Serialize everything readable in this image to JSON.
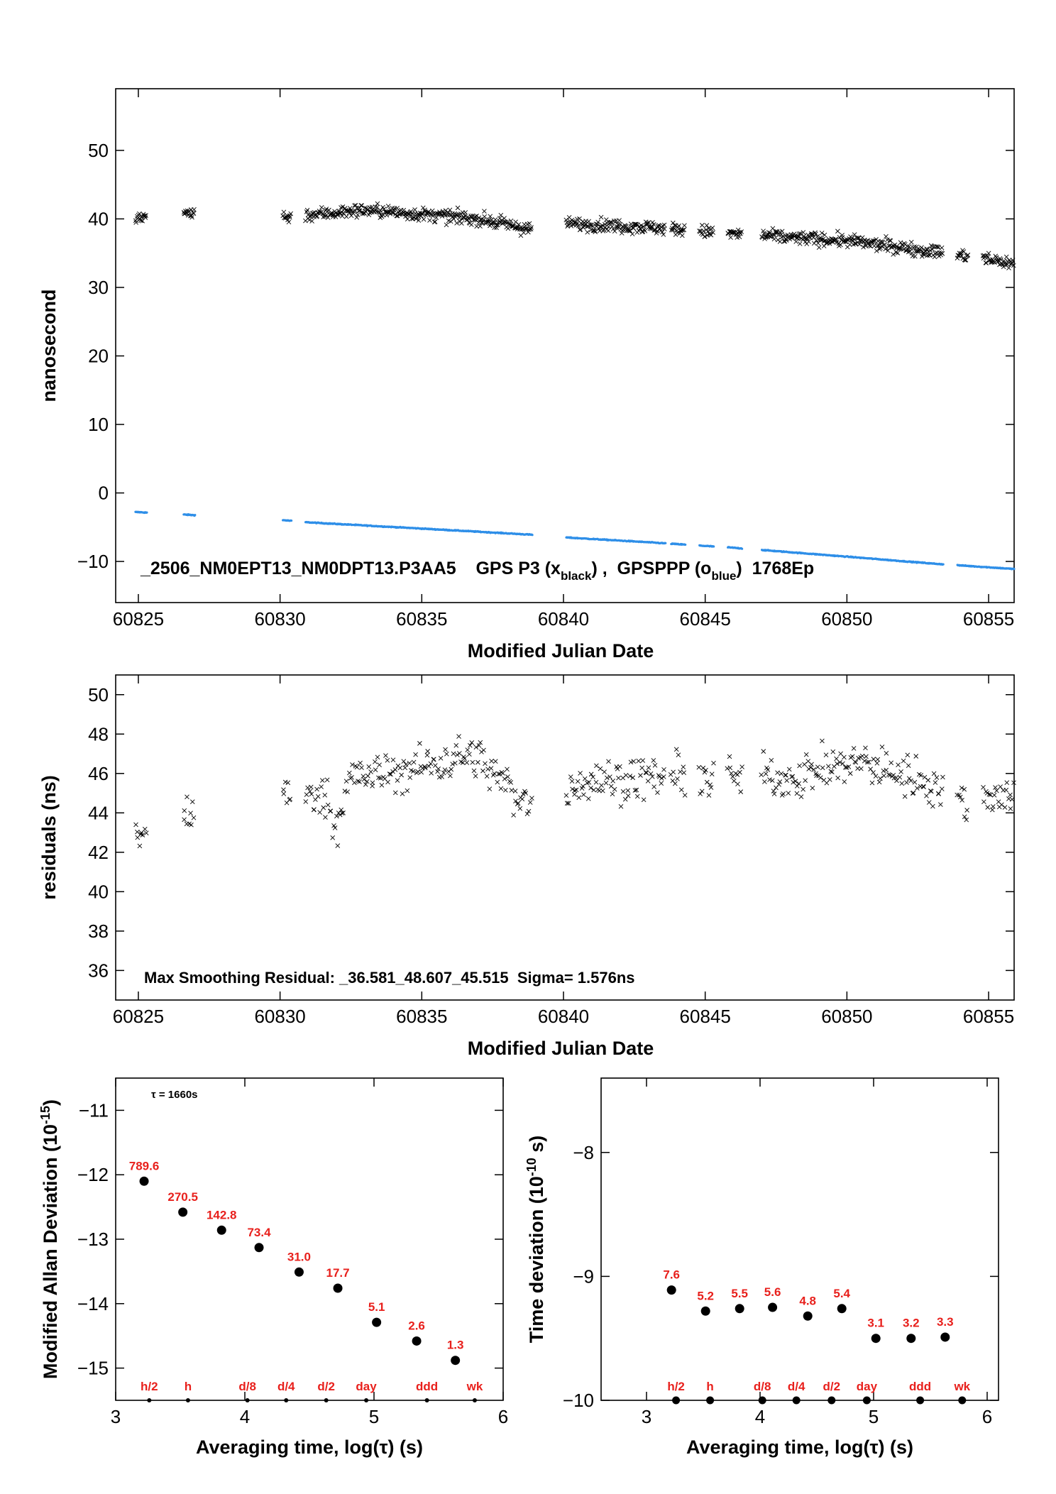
{
  "chart_data": [
    {
      "id": "time_series",
      "type": "scatter",
      "xlabel": "Modified Julian Date",
      "ylabel": "nanosecond",
      "xlim": [
        60824.2,
        60855.9
      ],
      "ylim": [
        -16,
        59
      ],
      "xticks": [
        60825,
        60830,
        60835,
        60840,
        60845,
        60850,
        60855
      ],
      "yticks": [
        -10,
        0,
        10,
        20,
        30,
        40,
        50
      ],
      "annotation": {
        "prefix": "_2506_NM0EPT13_NM0DPT13.P3AA5    GPS P3 (x",
        "sub1": "black",
        "mid": ") ,  GPSPPP (o",
        "sub2": "blue",
        "suffix": ")  1768Ep"
      },
      "colors": {
        "black_series": "#000000",
        "blue_series": "#2f8fe8"
      },
      "series": [
        {
          "marker": "x",
          "color": "#000000",
          "segments": [
            [
              60824.9,
              60825.3
            ],
            [
              60826.6,
              60827.0
            ],
            [
              60830.1,
              60830.4
            ],
            [
              60830.9,
              60838.9
            ],
            [
              60840.1,
              60843.6
            ],
            [
              60843.8,
              60844.3
            ],
            [
              60844.8,
              60845.3
            ],
            [
              60845.8,
              60846.3
            ],
            [
              60847.0,
              60853.4
            ],
            [
              60853.9,
              60854.3
            ],
            [
              60854.8,
              60855.9
            ]
          ],
          "trend": [
            [
              60825,
              40
            ],
            [
              60826.8,
              41
            ],
            [
              60830.2,
              40.3
            ],
            [
              60833,
              41.3
            ],
            [
              60837,
              40
            ],
            [
              60838.8,
              38.5
            ],
            [
              60840.3,
              39.3
            ],
            [
              60843,
              38.8
            ],
            [
              60846,
              37.8
            ],
            [
              60850,
              36.8
            ],
            [
              60853,
              35.3
            ],
            [
              60855.9,
              33.5
            ]
          ]
        },
        {
          "marker": "o",
          "color": "#2f8fe8",
          "segments": [
            [
              60824.9,
              60825.3
            ],
            [
              60826.6,
              60827.0
            ],
            [
              60830.1,
              60830.4
            ],
            [
              60830.9,
              60838.9
            ],
            [
              60840.1,
              60843.6
            ],
            [
              60843.8,
              60844.3
            ],
            [
              60844.8,
              60845.3
            ],
            [
              60845.8,
              60846.3
            ],
            [
              60847.0,
              60853.4
            ],
            [
              60853.9,
              60855.9
            ]
          ],
          "trend": [
            [
              60825,
              -2.8
            ],
            [
              60826.8,
              -3.2
            ],
            [
              60830.2,
              -4
            ],
            [
              60831,
              -4.3
            ],
            [
              60835,
              -5.2
            ],
            [
              60838.9,
              -6.1
            ],
            [
              60840.1,
              -6.5
            ],
            [
              60843,
              -7.2
            ],
            [
              60846,
              -8
            ],
            [
              60850,
              -9.3
            ],
            [
              60853,
              -10.3
            ],
            [
              60855.9,
              -11.1
            ]
          ]
        }
      ]
    },
    {
      "id": "residuals",
      "type": "scatter",
      "xlabel": "Modified Julian Date",
      "ylabel": "residuals (ns)",
      "xlim": [
        60824.2,
        60855.9
      ],
      "ylim": [
        34.5,
        51
      ],
      "xticks": [
        60825,
        60830,
        60835,
        60840,
        60845,
        60850,
        60855
      ],
      "yticks": [
        36,
        38,
        40,
        42,
        44,
        46,
        48,
        50
      ],
      "annotation": "Max Smoothing Residual: _36.581_48.607_45.515  Sigma= 1.576ns",
      "series": [
        {
          "marker": "x",
          "color": "#000000",
          "segments": [
            [
              60824.9,
              60825.3
            ],
            [
              60826.6,
              60827.0
            ],
            [
              60830.1,
              60830.4
            ],
            [
              60830.9,
              60838.9
            ],
            [
              60840.1,
              60843.6
            ],
            [
              60843.8,
              60844.3
            ],
            [
              60844.8,
              60845.3
            ],
            [
              60845.8,
              60846.3
            ],
            [
              60847.0,
              60853.4
            ],
            [
              60853.9,
              60854.3
            ],
            [
              60854.8,
              60855.9
            ]
          ],
          "trend": [
            [
              60825,
              42.8
            ],
            [
              60826.8,
              44.2
            ],
            [
              60830.2,
              44.7
            ],
            [
              60831.5,
              45
            ],
            [
              60832,
              43.5
            ],
            [
              60832.5,
              45.8
            ],
            [
              60834,
              46
            ],
            [
              60836.8,
              47
            ],
            [
              60838.8,
              44.3
            ],
            [
              60840.3,
              45.5
            ],
            [
              60843,
              45.8
            ],
            [
              60846,
              45.8
            ],
            [
              60848,
              45.8
            ],
            [
              60850.5,
              46.6
            ],
            [
              60853,
              45.5
            ],
            [
              60854.2,
              44.5
            ],
            [
              60855.5,
              45
            ]
          ]
        }
      ]
    },
    {
      "id": "allan_deviation",
      "type": "scatter",
      "xlabel": "Averaging time, log(τ) (s)",
      "ylabel": "Modified Allan Deviation (10",
      "ylabel_sup": "-15",
      "ylabel_end": ")",
      "xlim": [
        3,
        6
      ],
      "ylim": [
        -15.5,
        -10.5
      ],
      "xticks": [
        3,
        4,
        5,
        6
      ],
      "yticks": [
        -15,
        -14,
        -13,
        -12,
        -11
      ],
      "tau_note": "τ = 1660s",
      "points": [
        {
          "x": 3.22,
          "y": -12.1,
          "label": "789.6"
        },
        {
          "x": 3.52,
          "y": -12.58,
          "label": "270.5"
        },
        {
          "x": 3.82,
          "y": -12.86,
          "label": "142.8"
        },
        {
          "x": 4.11,
          "y": -13.13,
          "label": "73.4"
        },
        {
          "x": 4.42,
          "y": -13.51,
          "label": "31.0"
        },
        {
          "x": 4.72,
          "y": -13.76,
          "label": "17.7"
        },
        {
          "x": 5.02,
          "y": -14.29,
          "label": "5.1"
        },
        {
          "x": 5.33,
          "y": -14.58,
          "label": "2.6"
        },
        {
          "x": 5.63,
          "y": -14.88,
          "label": "1.3"
        }
      ],
      "markers": [
        {
          "x": 3.26,
          "label": "h/2"
        },
        {
          "x": 3.56,
          "label": "h"
        },
        {
          "x": 4.02,
          "label": "d/8"
        },
        {
          "x": 4.32,
          "label": "d/4"
        },
        {
          "x": 4.63,
          "label": "d/2"
        },
        {
          "x": 4.94,
          "label": "day"
        },
        {
          "x": 5.41,
          "label": "ddd"
        },
        {
          "x": 5.78,
          "label": "wk"
        }
      ]
    },
    {
      "id": "time_deviation",
      "type": "scatter",
      "xlabel": "Averaging time, log(τ) (s)",
      "ylabel": "Time deviation (10",
      "ylabel_sup": "-10",
      "ylabel_end": " s)",
      "xlim": [
        2.6,
        6.1
      ],
      "ylim": [
        -10,
        -7.4
      ],
      "xticks": [
        3,
        4,
        5,
        6
      ],
      "yticks": [
        -10,
        -9,
        -8
      ],
      "points": [
        {
          "x": 3.22,
          "y": -9.11,
          "label": "7.6"
        },
        {
          "x": 3.52,
          "y": -9.28,
          "label": "5.2"
        },
        {
          "x": 3.82,
          "y": -9.26,
          "label": "5.5"
        },
        {
          "x": 4.11,
          "y": -9.25,
          "label": "5.6"
        },
        {
          "x": 4.42,
          "y": -9.32,
          "label": "4.8"
        },
        {
          "x": 4.72,
          "y": -9.26,
          "label": "5.4"
        },
        {
          "x": 5.02,
          "y": -9.5,
          "label": "3.1"
        },
        {
          "x": 5.33,
          "y": -9.5,
          "label": "3.2"
        },
        {
          "x": 5.63,
          "y": -9.49,
          "label": "3.3"
        }
      ],
      "markers": [
        {
          "x": 3.26,
          "label": "h/2"
        },
        {
          "x": 3.56,
          "label": "h"
        },
        {
          "x": 4.02,
          "label": "d/8"
        },
        {
          "x": 4.32,
          "label": "d/4"
        },
        {
          "x": 4.63,
          "label": "d/2"
        },
        {
          "x": 4.94,
          "label": "day"
        },
        {
          "x": 5.41,
          "label": "ddd"
        },
        {
          "x": 5.78,
          "label": "wk"
        }
      ]
    }
  ]
}
